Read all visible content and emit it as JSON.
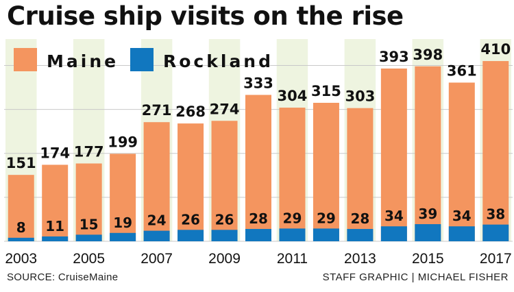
{
  "title": "Cruise ship visits on the rise",
  "source": "SOURCE: CruiseMaine",
  "credit": "STAFF GRAPHIC | MICHAEL FISHER",
  "colors": {
    "maine": "#f4955f",
    "rockland": "#1177bf",
    "band": "#eef4e0",
    "grid": "#c8c8c8"
  },
  "chart_data": {
    "type": "bar",
    "categories": [
      "2003",
      "2004",
      "2005",
      "2006",
      "2007",
      "2008",
      "2009",
      "2010",
      "2011",
      "2012",
      "2013",
      "2014",
      "2015",
      "2016",
      "2017"
    ],
    "tick_labels": [
      "2003",
      "",
      "2005",
      "",
      "2007",
      "",
      "2009",
      "",
      "2011",
      "",
      "2013",
      "",
      "2015",
      "",
      "2017"
    ],
    "series": [
      {
        "name": "Maine",
        "values": [
          151,
          174,
          177,
          199,
          271,
          268,
          274,
          333,
          304,
          315,
          303,
          393,
          398,
          361,
          410
        ]
      },
      {
        "name": "Rockland",
        "values": [
          8,
          11,
          15,
          19,
          24,
          26,
          26,
          28,
          29,
          29,
          28,
          34,
          39,
          34,
          38
        ]
      }
    ],
    "ylim": [
      0,
      460
    ],
    "legend": [
      "Maine",
      "Rockland"
    ],
    "legend_position": "top-left",
    "grid": true
  }
}
